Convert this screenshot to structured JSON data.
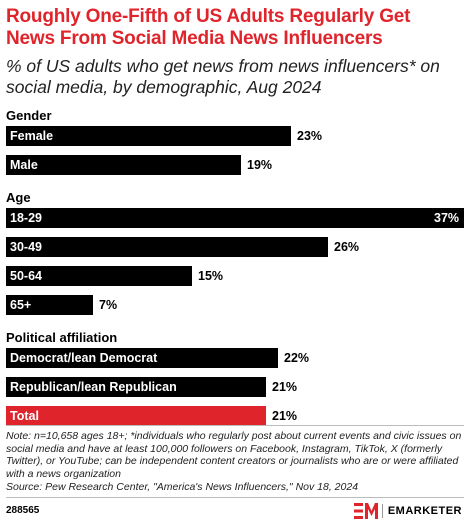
{
  "title": "Roughly One-Fifth of US Adults Regularly Get News From Social Media News Influencers",
  "subtitle": "% of US adults who get news from news influencers* on social media, by demographic, Aug 2024",
  "chart_data": {
    "type": "bar",
    "orientation": "horizontal",
    "title": "Roughly One-Fifth of US Adults Regularly Get News From Social Media News Influencers",
    "subtitle": "% of US adults who get news from news influencers* on social media, by demographic, Aug 2024",
    "xlim": [
      0,
      37
    ],
    "grid": false,
    "groups": [
      {
        "name": "Gender",
        "bars": [
          {
            "label": "Female",
            "value": 23,
            "value_label": "23%"
          },
          {
            "label": "Male",
            "value": 19,
            "value_label": "19%"
          }
        ]
      },
      {
        "name": "Age",
        "bars": [
          {
            "label": "18-29",
            "value": 37,
            "value_label": "37%"
          },
          {
            "label": "30-49",
            "value": 26,
            "value_label": "26%"
          },
          {
            "label": "50-64",
            "value": 15,
            "value_label": "15%"
          },
          {
            "label": "65+",
            "value": 7,
            "value_label": "7%"
          }
        ]
      },
      {
        "name": "Political affiliation",
        "bars": [
          {
            "label": "Democrat/lean Democrat",
            "value": 22,
            "value_label": "22%"
          },
          {
            "label": "Republican/lean Republican",
            "value": 21,
            "value_label": "21%"
          },
          {
            "label": "Total",
            "value": 21,
            "value_label": "21%",
            "highlight": true
          }
        ]
      }
    ],
    "colors": {
      "bar": "#000000",
      "highlight": "#e0242c"
    }
  },
  "note": "Note: n=10,658 ages 18+; *individuals who regularly post about current events and civic issues on social media and have at least 100,000 followers on Facebook, Instagram, TikTok, X (formerly Twitter), or YouTube; can be independent content creators or journalists who are or were affiliated with a news organization",
  "source": "Source: Pew Research Center, \"America's News Influencers,\" Nov 18, 2024",
  "chart_id": "288565",
  "brand": {
    "name": "EMARKETER",
    "accent": "#e0242c"
  }
}
